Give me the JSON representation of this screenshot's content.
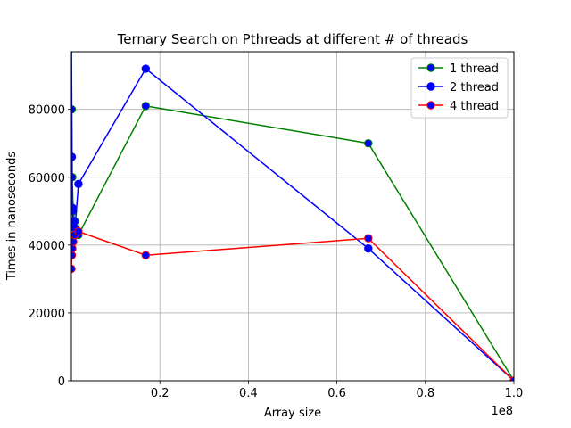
{
  "chart_data": {
    "type": "line",
    "title": "Ternary Search on Pthreads at different # of threads",
    "xlabel": "Array size",
    "ylabel": "Times in nanoseconds",
    "x_offset_label": "1e8",
    "xlim": [
      0,
      1.0
    ],
    "ylim": [
      0,
      97000
    ],
    "x_ticks": [
      0.2,
      0.4,
      0.6,
      0.8,
      1.0
    ],
    "x_tick_labels": [
      "0.2",
      "0.4",
      "0.6",
      "0.8",
      "1.0"
    ],
    "y_ticks": [
      0,
      20000,
      40000,
      60000,
      80000
    ],
    "y_tick_labels": [
      "0",
      "20000",
      "40000",
      "60000",
      "80000"
    ],
    "grid": true,
    "legend_position": "top-right",
    "series": [
      {
        "name": "1 thread",
        "color": "#008000",
        "marker_face": "#0000ff",
        "x": [
          0.0,
          0.001,
          0.002,
          0.004,
          0.008,
          0.016,
          0.168,
          0.671,
          1.0
        ],
        "y": [
          98000,
          80000,
          60000,
          50000,
          47000,
          43000,
          81000,
          70000,
          0
        ]
      },
      {
        "name": "2 thread",
        "color": "#0000ff",
        "marker_face": "#0000ff",
        "x": [
          0.0,
          0.001,
          0.002,
          0.004,
          0.008,
          0.016,
          0.168,
          0.671,
          1.0
        ],
        "y": [
          98000,
          66000,
          51000,
          47000,
          45000,
          58000,
          92000,
          39000,
          0
        ]
      },
      {
        "name": "4 thread",
        "color": "#ff0000",
        "marker_face": "#0000ff",
        "x": [
          0.0,
          0.001,
          0.002,
          0.004,
          0.008,
          0.016,
          0.168,
          0.671,
          1.0
        ],
        "y": [
          33000,
          37000,
          39000,
          41000,
          43000,
          44000,
          37000,
          42000,
          0
        ]
      }
    ]
  }
}
